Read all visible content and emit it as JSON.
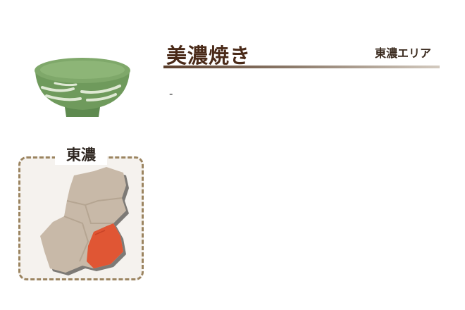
{
  "product": {
    "title": "美濃焼き",
    "area_label": "東濃エリア",
    "description": "-"
  },
  "map": {
    "region_label": "東濃",
    "highlight_color": "#e05634",
    "base_color": "#c8b9a8",
    "border_color": "#9b8460"
  },
  "bowl": {
    "icon": "green-bowl-icon",
    "color": "#6f9a5c"
  }
}
